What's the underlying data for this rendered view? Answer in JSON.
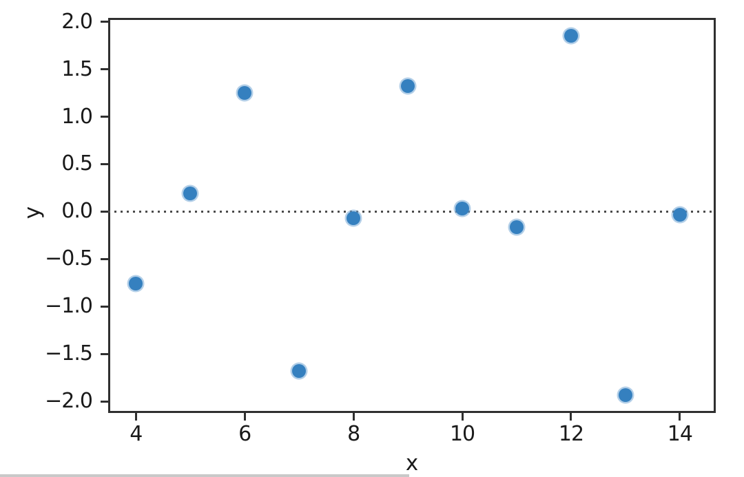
{
  "chart_data": {
    "type": "scatter",
    "title": "",
    "xlabel": "x",
    "ylabel": "y",
    "x": [
      4,
      5,
      6,
      7,
      8,
      9,
      10,
      11,
      12,
      13,
      14
    ],
    "y": [
      -0.76,
      0.19,
      1.25,
      -1.68,
      -0.07,
      1.32,
      0.03,
      -0.16,
      1.85,
      -1.93,
      -0.03
    ],
    "xlim": [
      3.49,
      14.66
    ],
    "ylim": [
      -2.12,
      2.04
    ],
    "xticks": [
      4,
      6,
      8,
      10,
      12,
      14
    ],
    "yticks": [
      2.0,
      1.5,
      1.0,
      0.5,
      0.0,
      -0.5,
      -1.0,
      -1.5,
      -2.0
    ],
    "grid": false,
    "legend": null,
    "marker_color": "#3580bf",
    "spine_color": "#2f2f2f",
    "reference_line": {
      "y": 0,
      "style": "dotted",
      "color": "#4a4a4a"
    }
  }
}
